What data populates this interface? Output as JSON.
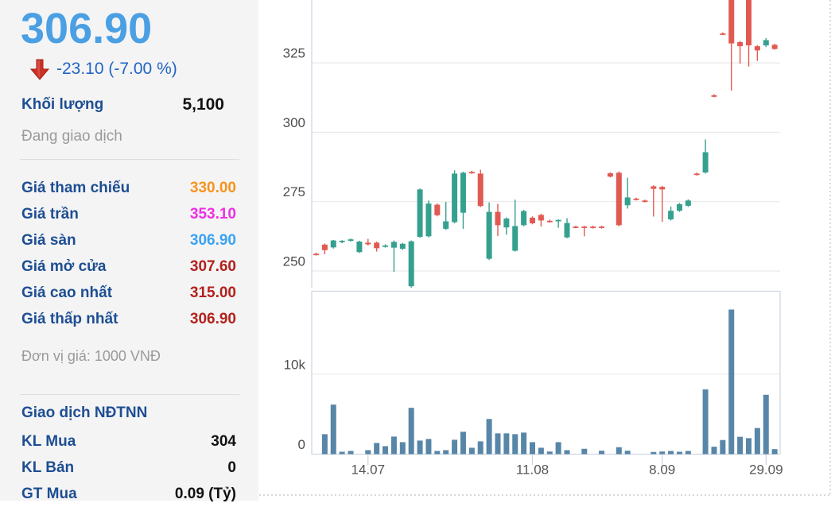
{
  "quote_panel": {
    "last_price": "306.90",
    "change_text": "-23.10 (-7.00 %)",
    "volume_row": {
      "label": "Khối lượng",
      "value": "5,100"
    },
    "status_text": "Đang giao dịch",
    "price_rows": [
      {
        "label": "Giá tham chiếu",
        "value": "330.00",
        "color": "#f7941e"
      },
      {
        "label": "Giá trần",
        "value": "353.10",
        "color": "#ee2fe4"
      },
      {
        "label": "Giá sàn",
        "value": "306.90",
        "color": "#3ba2f2"
      },
      {
        "label": "Giá mở cửa",
        "value": "307.60",
        "color": "#b3211d"
      },
      {
        "label": "Giá cao nhất",
        "value": "315.00",
        "color": "#b3211d"
      },
      {
        "label": "Giá thấp nhất",
        "value": "306.90",
        "color": "#b3211d"
      }
    ],
    "unit_note": "Đơn vị giá: 1000 VNĐ",
    "foreign_section": {
      "title": "Giao dịch NĐTNN",
      "rows": [
        {
          "label": "KL Mua",
          "value": "304"
        },
        {
          "label": "KL Bán",
          "value": "0"
        },
        {
          "label": "GT Mua",
          "value": "0.09 (Tỷ)"
        }
      ]
    }
  },
  "chart_data": {
    "type": "candlestick+volume",
    "price_unit": "1000 VND",
    "price_axis": {
      "ticks": [
        250,
        275,
        300,
        325
      ],
      "ylim": [
        243,
        355
      ]
    },
    "volume_axis": {
      "ticks": [
        {
          "value": 0,
          "label": "0"
        },
        {
          "value": 10000,
          "label": "10k"
        }
      ],
      "ylim": [
        0,
        20000
      ]
    },
    "x_ticks": [
      {
        "label": "14.07",
        "index": 6
      },
      {
        "label": "11.08",
        "index": 25
      },
      {
        "label": "8.09",
        "index": 40
      },
      {
        "label": "29.09",
        "index": 52
      }
    ],
    "colors": {
      "up": "#36a08f",
      "down": "#e15a52",
      "volume_bar": "#5786a8",
      "grid": "#e9e9e9",
      "panel_border": "#ccd4e2",
      "axis_text": "#4d4d4d",
      "dashed_border": "#c0c0c0"
    },
    "legend": "ohlcv = [open, high, low, close, volume]",
    "ohlcv": [
      [
        256.2,
        256.6,
        255.6,
        255.8,
        0
      ],
      [
        259.5,
        259.9,
        256.0,
        257.5,
        2500
      ],
      [
        258.5,
        261.2,
        258.1,
        261.0,
        6200
      ],
      [
        260.5,
        261.1,
        260.0,
        260.9,
        300
      ],
      [
        261.0,
        261.7,
        260.6,
        261.4,
        400
      ],
      [
        256.8,
        260.9,
        256.5,
        260.6,
        0
      ],
      [
        260.2,
        261.6,
        259.2,
        259.6,
        500
      ],
      [
        260.2,
        260.6,
        257.0,
        258.2,
        1400
      ],
      [
        258.8,
        259.6,
        258.4,
        259.2,
        1000
      ],
      [
        258.4,
        261.0,
        249.7,
        260.5,
        2200
      ],
      [
        258.0,
        260.1,
        257.6,
        259.8,
        1500
      ],
      [
        244.5,
        261.0,
        244.0,
        260.7,
        5800
      ],
      [
        262.3,
        279.7,
        262.0,
        279.4,
        1700
      ],
      [
        262.5,
        275.4,
        262.1,
        274.3,
        1900
      ],
      [
        273.9,
        274.3,
        269.7,
        270.1,
        400
      ],
      [
        265.2,
        274.9,
        264.8,
        267.9,
        500
      ],
      [
        267.6,
        286.3,
        267.2,
        285.1,
        1800
      ],
      [
        271.0,
        285.8,
        265.2,
        285.4,
        2800
      ],
      [
        285.7,
        286.1,
        285.0,
        285.3,
        800
      ],
      [
        285.1,
        286.5,
        273.0,
        273.4,
        1600
      ],
      [
        254.4,
        274.7,
        254.0,
        271.3,
        4400
      ],
      [
        271.3,
        274.2,
        262.6,
        266.5,
        2600
      ],
      [
        265.7,
        269.3,
        263.1,
        268.9,
        2600
      ],
      [
        257.3,
        275.7,
        257.0,
        266.2,
        2500
      ],
      [
        266.5,
        272.0,
        266.1,
        271.6,
        2700
      ],
      [
        269.2,
        269.7,
        266.8,
        267.2,
        1500
      ],
      [
        270.2,
        270.6,
        266.0,
        268.2,
        800
      ],
      [
        268.1,
        268.5,
        267.4,
        267.7,
        330
      ],
      [
        268.0,
        268.6,
        265.6,
        268.4,
        1500
      ],
      [
        262.1,
        269.0,
        261.8,
        267.3,
        500
      ],
      [
        266.0,
        266.3,
        265.4,
        265.6,
        0
      ],
      [
        266.0,
        266.3,
        262.5,
        265.6,
        670
      ],
      [
        266.0,
        266.3,
        265.3,
        265.6,
        0
      ],
      [
        266.0,
        266.3,
        265.3,
        265.6,
        430
      ],
      [
        285.2,
        285.6,
        283.7,
        284.0,
        0
      ],
      [
        285.4,
        285.9,
        266.1,
        266.5,
        870
      ],
      [
        273.7,
        283.6,
        272.5,
        276.5,
        430
      ],
      [
        276.1,
        276.4,
        275.4,
        275.7,
        0
      ],
      [
        275.4,
        275.7,
        274.7,
        275.0,
        0
      ],
      [
        280.5,
        280.9,
        269.6,
        279.6,
        270
      ],
      [
        280.3,
        280.7,
        267.7,
        279.4,
        330
      ],
      [
        268.6,
        273.2,
        268.2,
        271.7,
        400
      ],
      [
        271.7,
        274.5,
        271.3,
        274.1,
        300
      ],
      [
        273.5,
        275.8,
        273.1,
        275.4,
        400
      ],
      [
        285.1,
        285.5,
        284.4,
        284.7,
        0
      ],
      [
        285.5,
        297.4,
        285.1,
        292.8,
        8100
      ],
      [
        313.3,
        313.7,
        312.6,
        312.9,
        930
      ],
      [
        335.6,
        336.0,
        335.0,
        335.2,
        1770
      ],
      [
        352.0,
        353.1,
        315.0,
        332.0,
        18100
      ],
      [
        332.5,
        332.9,
        324.7,
        331.0,
        2170
      ],
      [
        352.0,
        353.1,
        323.7,
        331.3,
        2000
      ],
      [
        331.0,
        331.4,
        325.7,
        329.5,
        3270
      ],
      [
        331.3,
        333.9,
        330.7,
        333.2,
        7430
      ],
      [
        331.5,
        331.9,
        329.7,
        330.0,
        630
      ]
    ]
  }
}
